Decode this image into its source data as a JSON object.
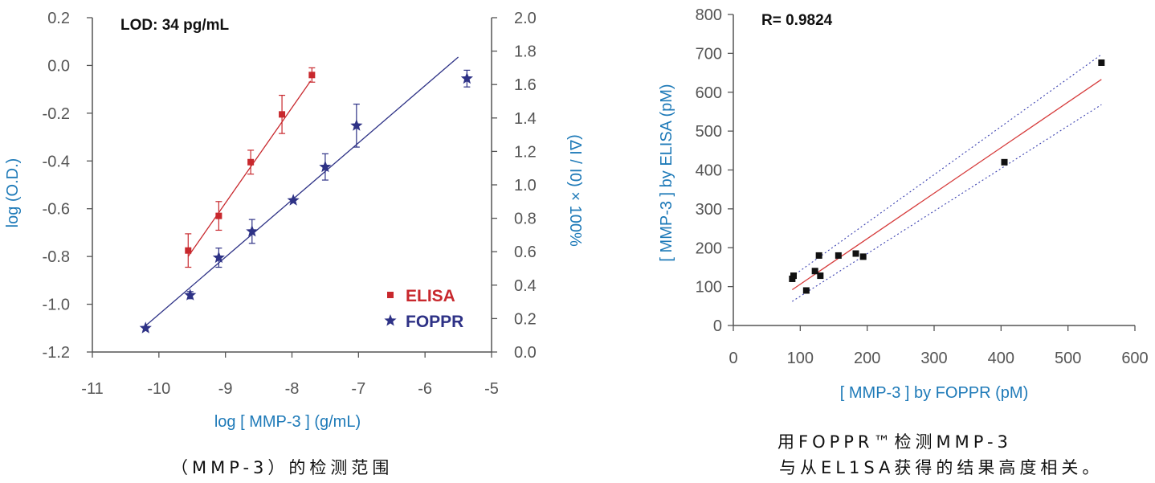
{
  "chart_data": [
    {
      "type": "scatter",
      "annotation": "LOD: 34 pg/mL",
      "xlabel": "log [ MMP-3 ] (g/mL)",
      "ylabel": "log (O.D.)",
      "ylabel_right": "(ΔI / I0) × 100%",
      "xlim": [
        -11,
        -5
      ],
      "ylim": [
        -1.2,
        0.2
      ],
      "ylim_right": [
        0.0,
        2.0
      ],
      "xticks": [
        "-11",
        "-10",
        "-9",
        "-8",
        "-7",
        "-6",
        "-5"
      ],
      "yticks": [
        "-1.2",
        "-1.0",
        "-0.8",
        "-0.6",
        "-0.4",
        "-0.2",
        "0.0",
        "0.2"
      ],
      "yticks_right": [
        "0.0",
        "0.2",
        "0.4",
        "0.6",
        "0.8",
        "1.0",
        "1.2",
        "1.4",
        "1.6",
        "1.8",
        "2.0"
      ],
      "legend_position": "bottom-right",
      "series": [
        {
          "name": "ELISA",
          "marker": "square",
          "color": "#c8282d",
          "x": [
            -9.56,
            -9.1,
            -8.62,
            -8.15,
            -7.7
          ],
          "y": [
            -0.775,
            -0.63,
            -0.405,
            -0.205,
            -0.04
          ],
          "err": [
            0.07,
            0.06,
            0.05,
            0.08,
            0.03
          ],
          "fit": {
            "x": [
              -9.56,
              -7.72
            ],
            "y": [
              -0.8,
              -0.065
            ]
          }
        },
        {
          "name": "FOPPR",
          "marker": "star",
          "color": "#2e3286",
          "x": [
            -10.2,
            -9.53,
            -9.1,
            -8.6,
            -7.98,
            -7.5,
            -7.03,
            -5.37
          ],
          "y": [
            -1.1,
            -0.962,
            -0.805,
            -0.695,
            -0.565,
            -0.425,
            -0.252,
            -0.055
          ],
          "err": [
            0.0,
            0.015,
            0.04,
            0.05,
            0.0,
            0.055,
            0.09,
            0.035
          ],
          "fit": {
            "x": [
              -10.22,
              -5.5
            ],
            "y": [
              -1.095,
              0.035
            ]
          }
        }
      ]
    },
    {
      "type": "scatter",
      "annotation": "R= 0.9824",
      "xlabel": "[ MMP-3 ] by FOPPR (pM)",
      "ylabel": "[ MMP-3 ] by ELISA (pM)",
      "xlim": [
        0,
        600
      ],
      "ylim": [
        0,
        800
      ],
      "xticks": [
        "0",
        "100",
        "200",
        "300",
        "400",
        "500",
        "600"
      ],
      "yticks": [
        "0",
        "100",
        "200",
        "300",
        "400",
        "500",
        "600",
        "700",
        "800"
      ],
      "series": [
        {
          "marker": "square",
          "color": "#111111",
          "x": [
            88,
            90,
            109,
            122,
            128,
            130,
            157,
            183,
            194,
            405,
            550
          ],
          "y": [
            120,
            128,
            90,
            140,
            180,
            128,
            180,
            185,
            177,
            420,
            676
          ]
        }
      ],
      "fit_line": {
        "color": "#d63b3b",
        "x": [
          88,
          550
        ],
        "y": [
          92,
          633
        ]
      },
      "confidence_bands": {
        "color": "#3a40b0",
        "x": [
          88,
          550
        ],
        "upper": [
          126,
          697
        ],
        "lower": [
          62,
          568
        ]
      }
    }
  ],
  "captions": {
    "left": "（MMP-3）的检测范围",
    "right_line1": "用FOPPR™检测MMP-3",
    "right_line2": "与从EL1SA获得的结果高度相关。"
  }
}
